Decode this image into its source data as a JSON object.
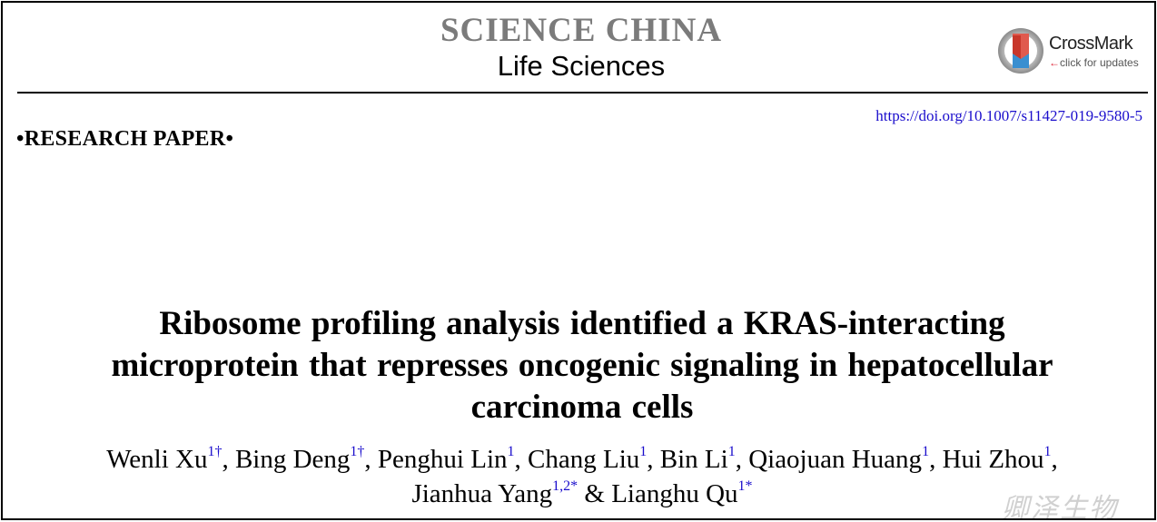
{
  "header": {
    "journal_name": "SCIENCE CHINA",
    "journal_section": "Life Sciences",
    "crossmark": {
      "title": "CrossMark",
      "subtitle": "click for updates",
      "arrow_icon": "left-arrow-icon"
    }
  },
  "doi": "https://doi.org/10.1007/s11427-019-9580-5",
  "paper_type": "•RESEARCH PAPER•",
  "title_lines": [
    "Ribosome profiling analysis identified a KRAS-interacting",
    "microprotein that represses oncogenic signaling in hepatocellular",
    "carcinoma cells"
  ],
  "authors": [
    {
      "name": "Wenli Xu",
      "aff": "1†",
      "sep": ", "
    },
    {
      "name": "Bing Deng",
      "aff": "1†",
      "sep": ", "
    },
    {
      "name": "Penghui Lin",
      "aff": "1",
      "sep": ", "
    },
    {
      "name": "Chang Liu",
      "aff": "1",
      "sep": ", "
    },
    {
      "name": "Bin Li",
      "aff": "1",
      "sep": ", "
    },
    {
      "name": "Qiaojuan Huang",
      "aff": "1",
      "sep": ", "
    },
    {
      "name": "Hui Zhou",
      "aff": "1",
      "sep": ","
    },
    {
      "name": "Jianhua Yang",
      "aff": "1,2*",
      "sep": " & "
    },
    {
      "name": "Lianghu Qu",
      "aff": "1*",
      "sep": ""
    }
  ],
  "watermark": "卿泽生物",
  "colors": {
    "journal_gray": "#7b7b7b",
    "link_blue": "#1a0dcc",
    "crossmark_red": "#d23"
  }
}
